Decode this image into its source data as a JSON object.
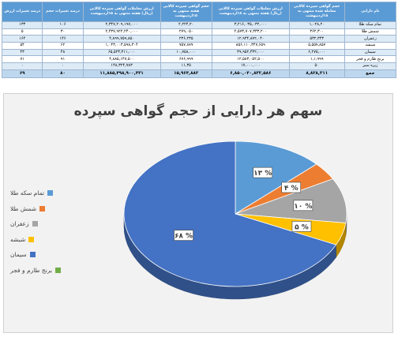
{
  "table": {
    "headers": [
      "نام دارایی",
      "حجم گواهی سپرده کالایی معامله شده منتهی به ۱۸اردیبهشت",
      "ارزش معاملات گواهی سپرده کالایی (ریال) هفته منتهی به ۱۸اردیبهشت",
      "حجم گواهی سپرده کالایی هفته منتهی به ۱۵اردیبهشت",
      "ارزش معاملات گواهی سپرده کالایی (ریال) هفته منتهی به ۱۵اردیبهشت",
      "درصد تغییرات حجم",
      "درصد تغییرات ارزش"
    ],
    "rows": [
      [
        "تمام سکه طلا",
        "۱,۰۲۸,۲۰",
        "۳,۲۱۶,۰۳۵,۰۳۲,۰۰۰",
        "۲,۲۲۴,۲۰",
        "۲,۳۴۷,۲۰۹,۱۹۷,۰۰۰",
        "۱۰۶",
        "۱۳۳"
      ],
      [
        "شمش طلا",
        "۳۶۲,۳۰۰",
        "۲,۵۷۳,۷۰۷,۳۳۳,۲۰۰",
        "۲۷۹,۰۵۰",
        "۲,۴۳۷,۹۲۲,۲۴۰,۰۰۰",
        "۳۰",
        "۵"
      ],
      [
        "زعفران",
        "۵۳۲,۳۴۳",
        "۱۲,۹۳۴,۸۷۲,۰۴۰",
        "۲۳۶,۲۳۵",
        "۴,۸۹۹,۷۵۹,۸۵۰",
        "۱۴۶",
        "۱۶۴"
      ],
      [
        "شبشه",
        "۵,۵۵۷,۸۵۷",
        "۸۵۶,۱۱۰,۳۴۷,۶۵۹",
        "۷۵۷,۸۷۷",
        "۱,۰۴۳,۰۰۳,۵۹۸,۳۰۴",
        "۶۲",
        "۵۴"
      ],
      [
        "سیمان",
        "۶,۲۷۵,۰۰۰",
        "۳۹,۹۵۲,۴۳۲,۰۰۰",
        "۱۰,۷۵۸,۰۰۰",
        "۶۵,۵۲۳,۳۱۱,۰۰۰",
        "۴۸",
        "۴۳"
      ],
      [
        "برنج طارم و فجر",
        "۱,۱,۹۹۹",
        "۱۲,۵۸۳,۰۵۲,۵۰۰",
        "۶۷۶,۹۹۹",
        "۴,۸۸۵,۱۴۷,۵۰۰",
        "۹۱",
        "۷۱"
      ],
      [
        "زیره سبز",
        "۵۰",
        "۱۷,۰۰۰,۰۰۰",
        "۱۱,۳۵",
        "۱۴۸,۳۲۴,۷۸۳",
        "۰",
        "۰"
      ]
    ],
    "total_label": "جمع",
    "total_row": [
      "۸,۸۲۸,۳۱۱",
      "۶,۸۵۰,۰۴۰,۸۳۲,۵۸۶",
      "۱۵,۹۶۴,۸۸۲",
      "۱۱,۸۸۵,۴۹۸,۹۰۰,۴۳۱",
      "۸۰",
      "۶۹"
    ]
  },
  "chart_data": {
    "type": "pie",
    "title": "سهم هر دارایی از حجم گواهی سپرده",
    "categories": [
      "تمام سکه طلا",
      "شمش طلا",
      "زعفران",
      "شبشه",
      "سیمان",
      "برنج طارم و فجر"
    ],
    "values": [
      13,
      4,
      10,
      5,
      68,
      0
    ],
    "data_labels": [
      "۱۳ %",
      "۴ %",
      "۱۰ %",
      "۵ %",
      "۶۸ %",
      ""
    ],
    "colors": [
      "#5b9bd5",
      "#ed7d31",
      "#a5a5a5",
      "#ffc000",
      "#4472c4",
      "#70ad47"
    ],
    "legend_position": "left",
    "style": "3d"
  }
}
